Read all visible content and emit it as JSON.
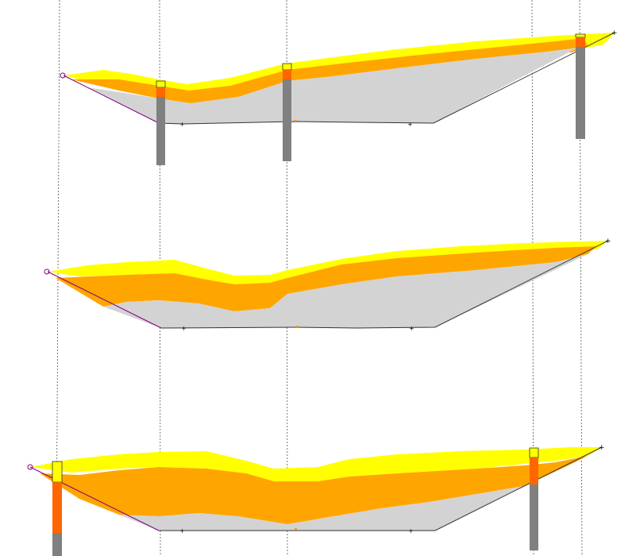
{
  "figure": {
    "description": "three stacked geological cross-section profiles with borehole columns",
    "colors": {
      "background": "#ffffff",
      "topsoil": "#ffff00",
      "sand": "#ffa500",
      "clay": "#d3d3d3",
      "base_line": "#333333",
      "left_boundary": "#800080",
      "borehole_fill": "#808080",
      "borehole_highlight": "#ff6600",
      "borehole_cap": "#ffff00",
      "guide_line": "#555555",
      "midpoint_marker": "#ff9900"
    }
  }
}
